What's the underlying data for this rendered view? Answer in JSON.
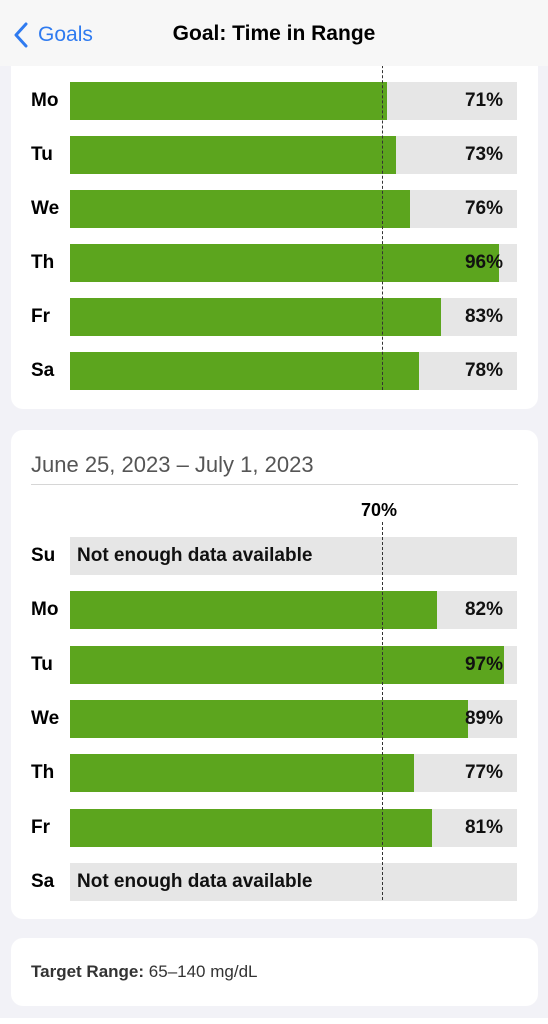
{
  "nav": {
    "back_label": "Goals",
    "title": "Goal: Time in Range"
  },
  "colors": {
    "accent": "#2f7bf0",
    "bar_fill": "#5ca51e",
    "bar_track": "#e6e6e6"
  },
  "goal_percent": 70,
  "week_previous": {
    "days": [
      {
        "day": "Mo",
        "percent": 71,
        "label": "71%"
      },
      {
        "day": "Tu",
        "percent": 73,
        "label": "73%"
      },
      {
        "day": "We",
        "percent": 76,
        "label": "76%"
      },
      {
        "day": "Th",
        "percent": 96,
        "label": "96%"
      },
      {
        "day": "Fr",
        "percent": 83,
        "label": "83%"
      },
      {
        "day": "Sa",
        "percent": 78,
        "label": "78%"
      }
    ]
  },
  "week_current": {
    "date_range": "June 25, 2023 – July 1, 2023",
    "goal_label": "70%",
    "days": [
      {
        "day": "Su",
        "percent": null,
        "label": "Not enough data available"
      },
      {
        "day": "Mo",
        "percent": 82,
        "label": "82%"
      },
      {
        "day": "Tu",
        "percent": 97,
        "label": "97%"
      },
      {
        "day": "We",
        "percent": 89,
        "label": "89%"
      },
      {
        "day": "Th",
        "percent": 77,
        "label": "77%"
      },
      {
        "day": "Fr",
        "percent": 81,
        "label": "81%"
      },
      {
        "day": "Sa",
        "percent": null,
        "label": "Not enough data available"
      }
    ]
  },
  "target_range": {
    "label": "Target Range:",
    "value": "65–140 mg/dL"
  }
}
